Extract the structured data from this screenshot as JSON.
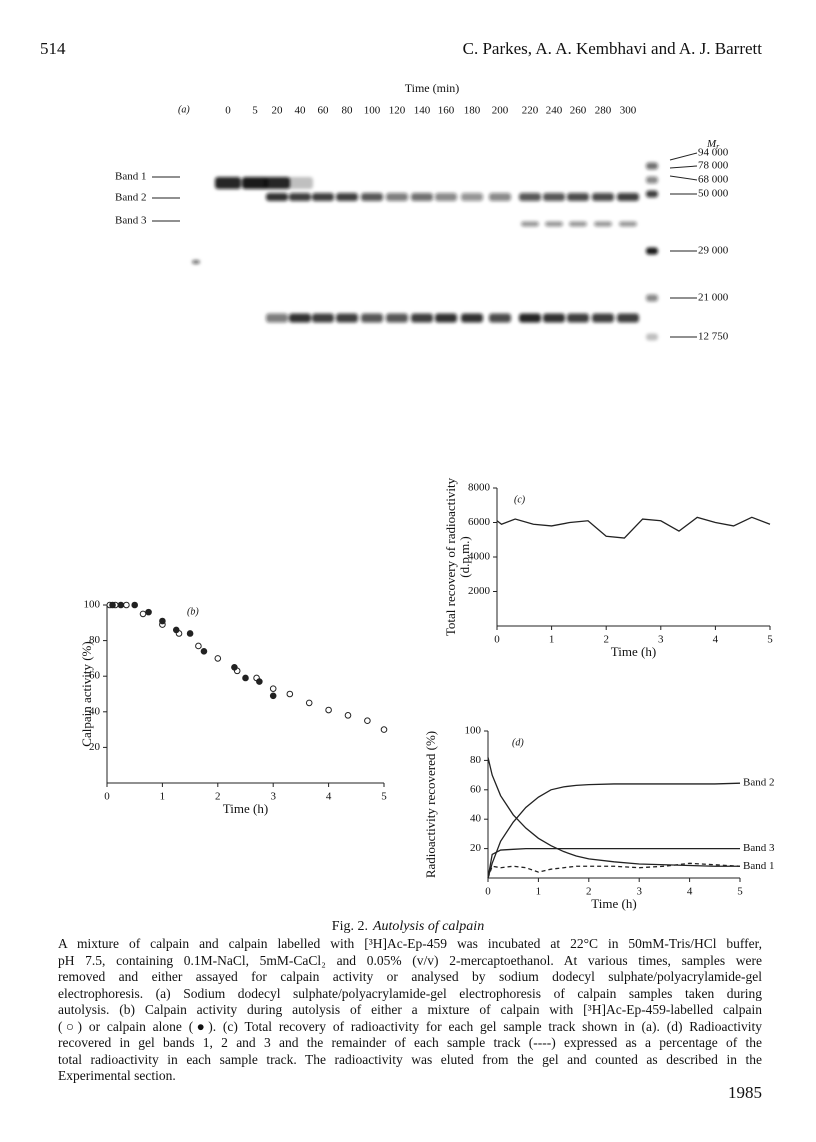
{
  "header": {
    "page_number": "514",
    "authors": "C. Parkes, A. A. Kembhavi and A. J. Barrett"
  },
  "gel": {
    "panel_label": "(a)",
    "axis_title": "Time (min)",
    "lanes": [
      "0",
      "5",
      "20",
      "40",
      "60",
      "80",
      "100",
      "120",
      "140",
      "160",
      "180",
      "200",
      "220",
      "240",
      "260",
      "280",
      "300"
    ],
    "band_labels": [
      "Band 1",
      "Band 2",
      "Band 3"
    ],
    "marker_title": "M",
    "marker_title_sub": "r",
    "markers": [
      "94 000",
      "78 000",
      "68 000",
      "50 000",
      "29 000",
      "21 000",
      "12 750"
    ]
  },
  "chart_data": [
    {
      "type": "scatter",
      "panel_label": "(b)",
      "xlabel": "Time (h)",
      "ylabel": [
        "Calpain activity (%)"
      ],
      "xlim": [
        0,
        5
      ],
      "ylim": [
        0,
        100
      ],
      "xticks": [
        0,
        1,
        2,
        3,
        4,
        5
      ],
      "yticks": [
        20,
        40,
        60,
        80,
        100
      ],
      "series": [
        {
          "marker": "open",
          "color": "#222",
          "x": [
            0.05,
            0.15,
            0.35,
            0.65,
            1.0,
            1.3,
            1.65,
            2.0,
            2.35,
            2.7,
            3.0,
            3.3,
            3.65,
            4.0,
            4.35,
            4.7,
            5.0
          ],
          "values": [
            100,
            100,
            100,
            95,
            89,
            84,
            77,
            70,
            63,
            59,
            53,
            50,
            45,
            41,
            38,
            35,
            30
          ]
        },
        {
          "marker": "filled",
          "color": "#222",
          "x": [
            0.1,
            0.25,
            0.5,
            0.75,
            1.0,
            1.25,
            1.5,
            1.75,
            2.3,
            2.5,
            2.75,
            3.0
          ],
          "values": [
            100,
            100,
            100,
            96,
            91,
            86,
            84,
            74,
            65,
            59,
            57,
            49
          ]
        }
      ]
    },
    {
      "type": "line",
      "panel_label": "(c)",
      "xlabel": "Time (h)",
      "ylabel": [
        "Total recovery of radioactivity",
        "(d.p.m.)"
      ],
      "xlim": [
        0,
        5
      ],
      "ylim": [
        0,
        8000
      ],
      "xticks": [
        0,
        1,
        2,
        3,
        4,
        5
      ],
      "yticks": [
        2000,
        4000,
        6000,
        8000
      ],
      "x": [
        0,
        0.083,
        0.333,
        0.667,
        1,
        1.333,
        1.667,
        2,
        2.333,
        2.667,
        3,
        3.333,
        3.667,
        4,
        4.333,
        4.667,
        5
      ],
      "series": [
        {
          "color": "#222",
          "values": [
            6100,
            5900,
            6200,
            5900,
            5800,
            6000,
            6100,
            5200,
            5100,
            6200,
            6100,
            5500,
            6300,
            6000,
            5800,
            6300,
            5900
          ]
        }
      ]
    },
    {
      "type": "line",
      "panel_label": "(d)",
      "xlabel": "Time (h)",
      "ylabel": [
        "Radioactivity recovered (%)"
      ],
      "xlim": [
        0,
        5
      ],
      "ylim": [
        0,
        100
      ],
      "xticks": [
        0,
        1,
        2,
        3,
        4,
        5
      ],
      "yticks": [
        20,
        40,
        60,
        80,
        100
      ],
      "x": [
        0,
        0.083,
        0.25,
        0.5,
        0.75,
        1,
        1.25,
        1.5,
        1.75,
        2,
        2.5,
        3,
        3.5,
        4,
        4.5,
        5
      ],
      "series": [
        {
          "name": "Band 2",
          "color": "#222",
          "values": [
            0,
            10,
            25,
            38,
            48,
            55,
            60,
            62,
            63,
            63.5,
            64,
            64,
            64,
            64,
            64,
            64.5
          ]
        },
        {
          "name": "Band 3",
          "color": "#222",
          "values": [
            0,
            16,
            19,
            19.5,
            20,
            20,
            20,
            20,
            20,
            20,
            20,
            20,
            20,
            20,
            20,
            20
          ]
        },
        {
          "name": "Band 1",
          "color": "#222",
          "values": [
            82,
            70,
            56,
            43,
            34,
            27,
            22,
            18,
            15,
            13,
            11,
            9.5,
            9,
            8.5,
            8,
            8
          ]
        },
        {
          "color": "#222",
          "dash": true,
          "values": [
            0,
            8,
            7,
            8,
            7,
            4,
            6,
            7,
            8,
            8,
            8,
            7,
            8,
            10,
            9,
            8
          ]
        }
      ]
    }
  ],
  "caption": {
    "label": "Fig. 2.",
    "title": "Autolysis of calpain",
    "lines": [
      "A mixture of calpain and calpain labelled with [³H]Ac-Ep-459 was incubated at 22°C in 50mM-Tris/HCl buffer,",
      "pH 7.5, containing 0.1M-NaCl, 5mM-CaCl₂ and 0.05% (v/v) 2-mercaptoethanol. At various times, samples were",
      "removed and either assayed for calpain activity or analysed by sodium dodecyl sulphate/polyacrylamide-gel",
      "electrophoresis. (a) Sodium dodecyl sulphate/polyacrylamide-gel electrophoresis of calpain samples taken during",
      "autolysis. (b) Calpain activity during autolysis of either a mixture of calpain with [³H]Ac-Ep-459-labelled calpain",
      "(○) or calpain alone (●). (c) Total recovery of radioactivity for each gel sample track shown in (a). (d) Radioactivity",
      "recovered in gel bands 1, 2 and 3 and the remainder of each sample track (----) expressed as a percentage of the",
      "total radioactivity in each sample track. The radioactivity was eluted from the gel and counted as described in the",
      "Experimental section."
    ]
  },
  "footer": {
    "page_number": "1985"
  }
}
